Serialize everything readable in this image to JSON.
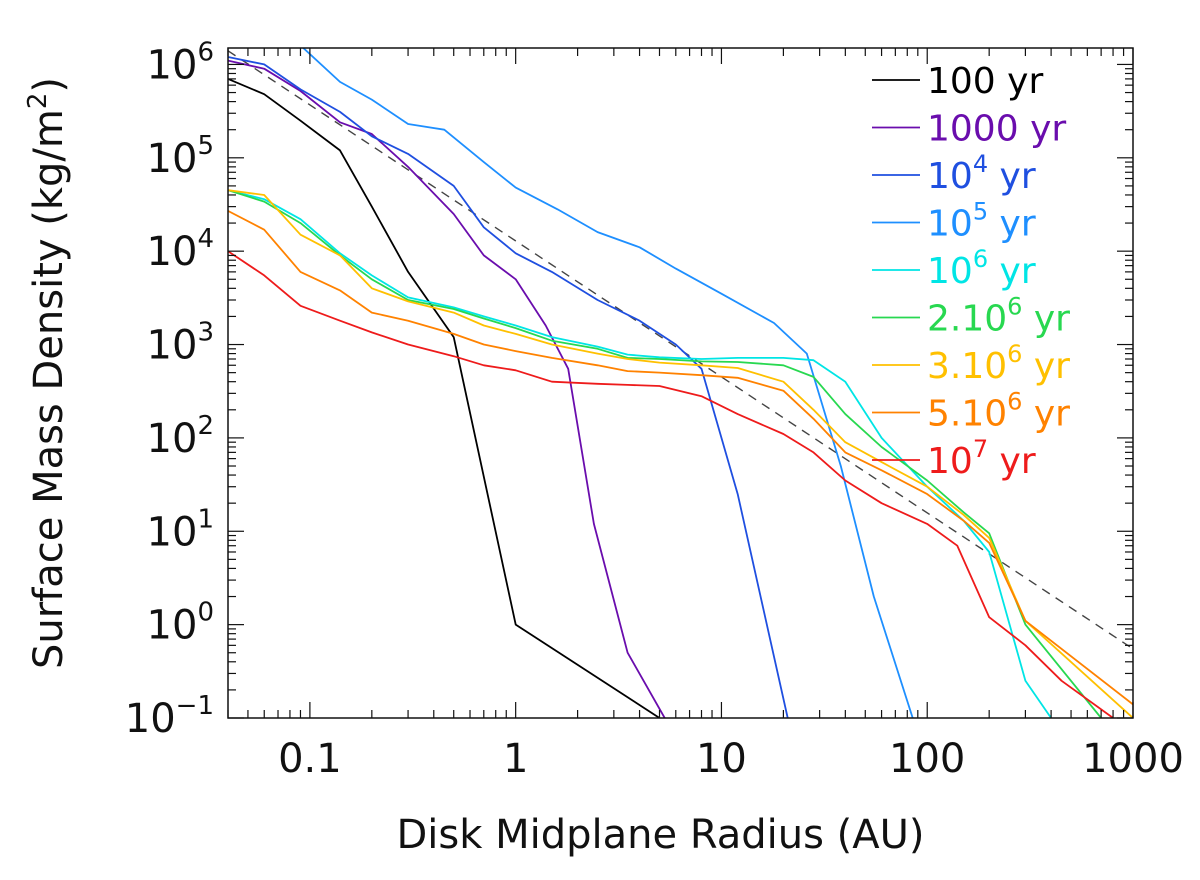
{
  "chart_data": {
    "type": "line",
    "xscale": "log",
    "yscale": "log",
    "xlim": [
      0.04,
      1000
    ],
    "ylim": [
      0.1,
      1500000
    ],
    "xlabel": "Disk Midplane Radius (AU)",
    "ylabel": "Surface Mass Density (kg/m²)",
    "ylabel_text": "Surface Mass Density (kg/m",
    "ylabel_sup": "2",
    "ylabel_close": ")",
    "xticks": [
      {
        "value": 0.1,
        "label": "0.1"
      },
      {
        "value": 1,
        "label": "1"
      },
      {
        "value": 10,
        "label": "10"
      },
      {
        "value": 100,
        "label": "100"
      },
      {
        "value": 1000,
        "label": "1000"
      }
    ],
    "yticks": [
      {
        "value": 0.1,
        "base": "10",
        "exp": "−1"
      },
      {
        "value": 1,
        "base": "10",
        "exp": "0"
      },
      {
        "value": 10,
        "base": "10",
        "exp": "1"
      },
      {
        "value": 100,
        "base": "10",
        "exp": "2"
      },
      {
        "value": 1000,
        "base": "10",
        "exp": "3"
      },
      {
        "value": 10000,
        "base": "10",
        "exp": "4"
      },
      {
        "value": 100000,
        "base": "10",
        "exp": "5"
      },
      {
        "value": 1000000,
        "base": "10",
        "exp": "6"
      }
    ],
    "reference": {
      "name": "power-law reference",
      "style": "dashed",
      "color": "#444444",
      "x": [
        0.04,
        1000
      ],
      "y": [
        1400000,
        0.55
      ]
    },
    "series": [
      {
        "name": "100 yr",
        "label": "100",
        "sup": "",
        "suffix": " yr",
        "color": "#000000",
        "x": [
          0.04,
          0.06,
          0.09,
          0.14,
          0.2,
          0.3,
          0.5,
          1,
          5
        ],
        "y": [
          700000,
          480000,
          250000,
          120000,
          30000,
          6000,
          1200,
          1.0,
          0.1
        ]
      },
      {
        "name": "1000 yr",
        "label": "1000",
        "sup": "",
        "suffix": " yr",
        "color": "#6a0dad",
        "x": [
          0.04,
          0.06,
          0.09,
          0.14,
          0.2,
          0.3,
          0.5,
          0.7,
          1,
          1.4,
          1.8,
          2.4,
          3.5,
          5.3
        ],
        "y": [
          1100000,
          900000,
          520000,
          240000,
          180000,
          80000,
          25000,
          9000,
          5000,
          1600,
          550,
          12,
          0.5,
          0.1
        ]
      },
      {
        "name": "10^4 yr",
        "label": "10",
        "sup": "4",
        "suffix": " yr",
        "color": "#1f4fe0",
        "x": [
          0.04,
          0.06,
          0.09,
          0.14,
          0.2,
          0.3,
          0.5,
          0.7,
          1,
          1.5,
          2.5,
          4,
          6,
          8,
          12,
          21
        ],
        "y": [
          1200000,
          1000000,
          540000,
          310000,
          170000,
          110000,
          50000,
          18000,
          9500,
          6000,
          3000,
          1800,
          1000,
          550,
          25,
          0.1
        ]
      },
      {
        "name": "10^5 yr",
        "label": "10",
        "sup": "5",
        "suffix": " yr",
        "color": "#1e8fff",
        "x": [
          0.09,
          0.14,
          0.2,
          0.3,
          0.45,
          0.7,
          1,
          1.6,
          2.5,
          4,
          6,
          10,
          18,
          26,
          38,
          55,
          85
        ],
        "y": [
          1600000,
          650000,
          420000,
          230000,
          200000,
          90000,
          48000,
          28000,
          16000,
          11000,
          6500,
          3500,
          1700,
          800,
          50,
          2,
          0.1
        ]
      },
      {
        "name": "10^6 yr",
        "label": "10",
        "sup": "6",
        "suffix": " yr",
        "color": "#00e5e5",
        "x": [
          0.04,
          0.06,
          0.09,
          0.14,
          0.2,
          0.3,
          0.5,
          0.7,
          1,
          1.5,
          2.5,
          3.5,
          5,
          8,
          12,
          20,
          28,
          40,
          60,
          100,
          150,
          200,
          300,
          400
        ],
        "y": [
          45000,
          36000,
          22000,
          9500,
          5500,
          3200,
          2500,
          2000,
          1600,
          1200,
          950,
          780,
          730,
          700,
          720,
          720,
          680,
          400,
          100,
          30,
          13,
          6,
          0.25,
          0.1
        ]
      },
      {
        "name": "2.10^6 yr",
        "label": "2.10",
        "sup": "6",
        "suffix": " yr",
        "color": "#28d850",
        "x": [
          0.04,
          0.06,
          0.09,
          0.14,
          0.2,
          0.3,
          0.5,
          0.7,
          1,
          1.5,
          2.5,
          3.5,
          5,
          8,
          12,
          20,
          28,
          40,
          60,
          100,
          150,
          200,
          300,
          700
        ],
        "y": [
          45000,
          34000,
          20000,
          9000,
          5000,
          3000,
          2400,
          1900,
          1500,
          1100,
          900,
          720,
          700,
          660,
          650,
          600,
          450,
          180,
          80,
          35,
          16,
          9.5,
          1.0,
          0.1
        ]
      },
      {
        "name": "3.10^6 yr",
        "label": "3.10",
        "sup": "6",
        "suffix": " yr",
        "color": "#ffc000",
        "x": [
          0.04,
          0.06,
          0.09,
          0.14,
          0.2,
          0.3,
          0.5,
          0.7,
          1,
          1.5,
          2.5,
          3.5,
          5,
          8,
          12,
          20,
          28,
          40,
          60,
          100,
          150,
          200,
          300,
          1000
        ],
        "y": [
          45000,
          40000,
          15000,
          9000,
          4000,
          2900,
          2200,
          1600,
          1300,
          1000,
          800,
          700,
          640,
          600,
          560,
          400,
          200,
          90,
          55,
          30,
          15,
          8.5,
          1.1,
          0.1
        ]
      },
      {
        "name": "5.10^6 yr",
        "label": "5.10",
        "sup": "6",
        "suffix": " yr",
        "color": "#ff8200",
        "x": [
          0.04,
          0.06,
          0.09,
          0.14,
          0.2,
          0.3,
          0.5,
          0.7,
          1,
          1.5,
          2.5,
          3.5,
          5,
          8,
          12,
          20,
          28,
          40,
          60,
          100,
          150,
          200,
          300,
          1000
        ],
        "y": [
          27000,
          17000,
          6000,
          3800,
          2200,
          1800,
          1300,
          1000,
          850,
          720,
          600,
          520,
          500,
          470,
          440,
          320,
          160,
          70,
          45,
          25,
          13,
          7.5,
          1.1,
          0.14
        ]
      },
      {
        "name": "10^7 yr",
        "label": "10",
        "sup": "7",
        "suffix": " yr",
        "color": "#ee1b1b",
        "x": [
          0.04,
          0.06,
          0.09,
          0.14,
          0.2,
          0.3,
          0.5,
          0.7,
          1,
          1.5,
          2.5,
          3.5,
          5,
          8,
          12,
          20,
          28,
          40,
          60,
          100,
          140,
          200,
          300,
          450,
          800
        ],
        "y": [
          10000,
          5500,
          2600,
          1800,
          1350,
          1000,
          750,
          600,
          530,
          400,
          380,
          370,
          360,
          280,
          180,
          110,
          70,
          35,
          20,
          12,
          7,
          1.2,
          0.6,
          0.25,
          0.1
        ]
      }
    ]
  }
}
